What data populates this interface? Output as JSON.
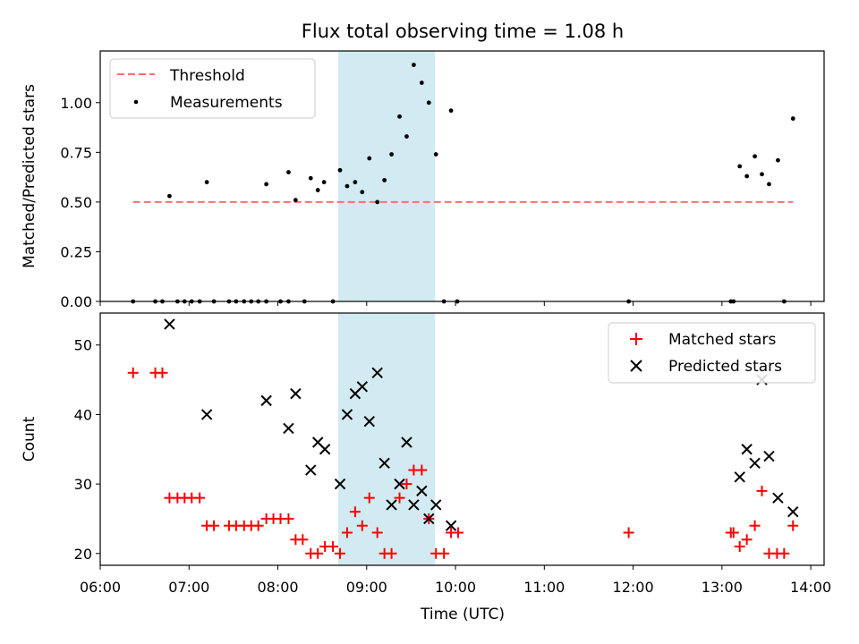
{
  "chart_data": {
    "title": "Flux total observing time = 1.08 h",
    "xlabel": "Time (UTC)",
    "xlim": [
      6.0,
      14.15
    ],
    "xticks": [
      6,
      7,
      8,
      9,
      10,
      11,
      12,
      13,
      14
    ],
    "xtick_labels": [
      "06:00",
      "07:00",
      "08:00",
      "09:00",
      "10:00",
      "11:00",
      "12:00",
      "13:00",
      "14:00"
    ],
    "highlight_span": [
      8.68,
      9.77
    ],
    "colors": {
      "highlight": "#add8e6",
      "threshold": "#ff6f6f",
      "matched": "#ff0000",
      "predicted": "#000000"
    },
    "panels": [
      {
        "type": "scatter",
        "ylabel": "Matched/Predicted stars",
        "ylim": [
          0,
          1.26
        ],
        "yticks": [
          0,
          0.25,
          0.5,
          0.75,
          1.0
        ],
        "ytick_labels": [
          "0.00",
          "0.25",
          "0.50",
          "0.75",
          "1.00"
        ],
        "legend": {
          "position": "top-left",
          "entries": [
            "Threshold",
            "Measurements"
          ]
        },
        "threshold": {
          "name": "Threshold",
          "y": 0.5,
          "x_range": [
            6.37,
            13.8
          ]
        },
        "series": [
          {
            "name": "Measurements",
            "points": [
              [
                6.78,
                0.53
              ],
              [
                7.2,
                0.6
              ],
              [
                7.87,
                0.59
              ],
              [
                8.12,
                0.65
              ],
              [
                8.2,
                0.51
              ],
              [
                8.37,
                0.62
              ],
              [
                8.45,
                0.56
              ],
              [
                8.52,
                0.6
              ],
              [
                8.7,
                0.66
              ],
              [
                8.78,
                0.58
              ],
              [
                8.87,
                0.6
              ],
              [
                8.95,
                0.55
              ],
              [
                9.03,
                0.72
              ],
              [
                9.12,
                0.5
              ],
              [
                9.2,
                0.61
              ],
              [
                9.28,
                0.74
              ],
              [
                9.37,
                0.93
              ],
              [
                9.45,
                0.83
              ],
              [
                9.53,
                1.19
              ],
              [
                9.62,
                1.1
              ],
              [
                9.7,
                1.0
              ],
              [
                9.78,
                0.74
              ],
              [
                9.95,
                0.96
              ],
              [
                13.2,
                0.68
              ],
              [
                13.28,
                0.63
              ],
              [
                13.37,
                0.73
              ],
              [
                13.45,
                0.64
              ],
              [
                13.53,
                0.59
              ],
              [
                13.63,
                0.71
              ],
              [
                13.8,
                0.92
              ],
              [
                6.37,
                0.0
              ],
              [
                6.62,
                0.0
              ],
              [
                6.7,
                0.0
              ],
              [
                6.87,
                0.0
              ],
              [
                6.95,
                0.0
              ],
              [
                7.03,
                0.0
              ],
              [
                7.12,
                0.0
              ],
              [
                7.28,
                0.0
              ],
              [
                7.45,
                0.0
              ],
              [
                7.53,
                0.0
              ],
              [
                7.62,
                0.0
              ],
              [
                7.7,
                0.0
              ],
              [
                7.78,
                0.0
              ],
              [
                7.87,
                0.0
              ],
              [
                8.03,
                0.0
              ],
              [
                8.12,
                0.0
              ],
              [
                8.3,
                0.0
              ],
              [
                8.62,
                0.0
              ],
              [
                9.87,
                0.0
              ],
              [
                10.02,
                0.0
              ],
              [
                11.95,
                0.0
              ],
              [
                13.1,
                0.0
              ],
              [
                13.13,
                0.0
              ],
              [
                13.7,
                0.0
              ]
            ]
          }
        ]
      },
      {
        "type": "scatter",
        "ylabel": "Count",
        "ylim": [
          18.3,
          54.6
        ],
        "yticks": [
          20,
          30,
          40,
          50
        ],
        "ytick_labels": [
          "20",
          "30",
          "40",
          "50"
        ],
        "legend": {
          "position": "top-right",
          "entries": [
            "Matched stars",
            "Predicted stars"
          ]
        },
        "series": [
          {
            "name": "Matched stars",
            "marker": "+",
            "points": [
              [
                6.37,
                46
              ],
              [
                6.62,
                46
              ],
              [
                6.7,
                46
              ],
              [
                6.78,
                28
              ],
              [
                6.87,
                28
              ],
              [
                6.95,
                28
              ],
              [
                7.03,
                28
              ],
              [
                7.12,
                28
              ],
              [
                7.2,
                24
              ],
              [
                7.28,
                24
              ],
              [
                7.45,
                24
              ],
              [
                7.53,
                24
              ],
              [
                7.62,
                24
              ],
              [
                7.7,
                24
              ],
              [
                7.78,
                24
              ],
              [
                7.87,
                25
              ],
              [
                7.95,
                25
              ],
              [
                8.03,
                25
              ],
              [
                8.12,
                25
              ],
              [
                8.2,
                22
              ],
              [
                8.28,
                22
              ],
              [
                8.37,
                20
              ],
              [
                8.45,
                20
              ],
              [
                8.53,
                21
              ],
              [
                8.62,
                21
              ],
              [
                8.7,
                20
              ],
              [
                8.78,
                23
              ],
              [
                8.87,
                26
              ],
              [
                8.95,
                24
              ],
              [
                9.03,
                28
              ],
              [
                9.12,
                23
              ],
              [
                9.2,
                20
              ],
              [
                9.28,
                20
              ],
              [
                9.37,
                28
              ],
              [
                9.45,
                30
              ],
              [
                9.53,
                32
              ],
              [
                9.62,
                32
              ],
              [
                9.7,
                25
              ],
              [
                9.78,
                20
              ],
              [
                9.87,
                20
              ],
              [
                9.95,
                23
              ],
              [
                10.03,
                23
              ],
              [
                11.95,
                23
              ],
              [
                13.1,
                23
              ],
              [
                13.13,
                23
              ],
              [
                13.2,
                21
              ],
              [
                13.28,
                22
              ],
              [
                13.37,
                24
              ],
              [
                13.45,
                29
              ],
              [
                13.53,
                20
              ],
              [
                13.62,
                20
              ],
              [
                13.7,
                20
              ],
              [
                13.8,
                24
              ]
            ]
          },
          {
            "name": "Predicted stars",
            "marker": "x",
            "points": [
              [
                6.78,
                53
              ],
              [
                7.2,
                40
              ],
              [
                7.87,
                42
              ],
              [
                8.12,
                38
              ],
              [
                8.2,
                43
              ],
              [
                8.37,
                32
              ],
              [
                8.45,
                36
              ],
              [
                8.53,
                35
              ],
              [
                8.7,
                30
              ],
              [
                8.78,
                40
              ],
              [
                8.87,
                43
              ],
              [
                8.95,
                44
              ],
              [
                9.03,
                39
              ],
              [
                9.12,
                46
              ],
              [
                9.2,
                33
              ],
              [
                9.28,
                27
              ],
              [
                9.37,
                30
              ],
              [
                9.45,
                36
              ],
              [
                9.53,
                27
              ],
              [
                9.62,
                29
              ],
              [
                9.7,
                25
              ],
              [
                9.78,
                27
              ],
              [
                9.95,
                24
              ],
              [
                13.2,
                31
              ],
              [
                13.28,
                35
              ],
              [
                13.37,
                33
              ],
              [
                13.45,
                45
              ],
              [
                13.53,
                34
              ],
              [
                13.63,
                28
              ],
              [
                13.8,
                26
              ]
            ]
          }
        ]
      }
    ]
  }
}
